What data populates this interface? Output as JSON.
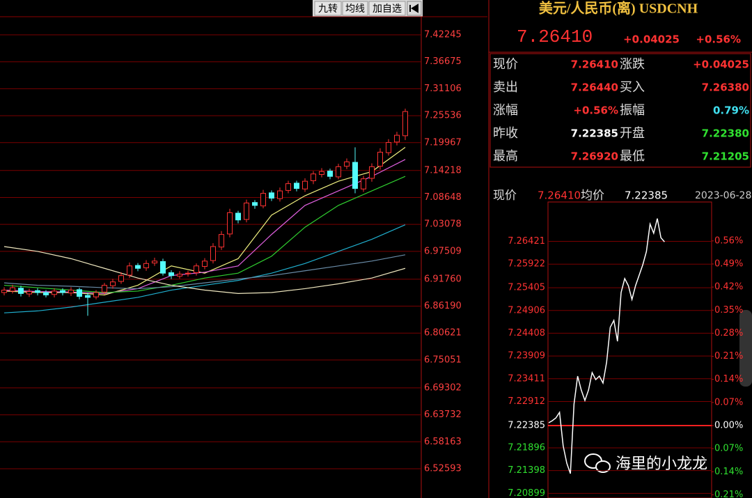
{
  "toolbar": {
    "buttons": [
      "九转",
      "均线",
      "加自选"
    ]
  },
  "kline": {
    "type": "candlestick",
    "ylim": [
      6.52593,
      7.42245
    ],
    "yticks": [
      {
        "value": 7.42245,
        "label": "7.42245"
      },
      {
        "value": 7.36675,
        "label": "7.36675"
      },
      {
        "value": 7.31106,
        "label": "7.31106"
      },
      {
        "value": 7.25536,
        "label": "7.25536"
      },
      {
        "value": 7.19967,
        "label": "7.19967"
      },
      {
        "value": 7.14218,
        "label": "7.14218"
      },
      {
        "value": 7.08648,
        "label": "7.08648"
      },
      {
        "value": 7.03078,
        "label": "7.03078"
      },
      {
        "value": 6.97509,
        "label": "6.97509"
      },
      {
        "value": 6.9176,
        "label": "6.91760"
      },
      {
        "value": 6.8619,
        "label": "6.86190"
      },
      {
        "value": 6.80621,
        "label": "6.80621"
      },
      {
        "value": 6.75051,
        "label": "6.75051"
      },
      {
        "value": 6.69302,
        "label": "6.69302"
      },
      {
        "value": 6.63732,
        "label": "6.63732"
      },
      {
        "value": 6.58163,
        "label": "6.58163"
      },
      {
        "value": 6.52593,
        "label": "6.52593"
      }
    ],
    "up_color": "#ff3232",
    "down_color": "#54fcfc",
    "open": [
      6.89,
      6.893,
      6.899,
      6.887,
      6.894,
      6.89,
      6.886,
      6.894,
      6.889,
      6.896,
      6.884,
      6.881,
      6.891,
      6.904,
      6.913,
      6.926,
      6.946,
      6.941,
      6.951,
      6.954,
      6.931,
      6.924,
      6.929,
      6.931,
      6.944,
      6.956,
      6.984,
      7.011,
      7.054,
      7.041,
      7.076,
      7.069,
      7.096,
      7.084,
      7.101,
      7.116,
      7.104,
      7.121,
      7.134,
      7.141,
      7.129,
      7.151,
      7.159,
      7.104,
      7.126,
      7.151,
      7.179,
      7.201,
      7.214
    ],
    "high": [
      6.901,
      6.906,
      6.904,
      6.898,
      6.899,
      6.895,
      6.899,
      6.899,
      6.901,
      6.9,
      6.89,
      6.895,
      6.91,
      6.918,
      6.932,
      6.952,
      6.951,
      6.957,
      6.962,
      6.96,
      6.936,
      6.934,
      6.935,
      6.95,
      6.961,
      6.992,
      7.017,
      7.063,
      7.059,
      7.082,
      7.081,
      7.102,
      7.101,
      7.107,
      7.121,
      7.121,
      7.126,
      7.141,
      7.147,
      7.146,
      7.156,
      7.167,
      7.19,
      7.131,
      7.157,
      7.188,
      7.207,
      7.222,
      7.27
    ],
    "low": [
      6.884,
      6.888,
      6.882,
      6.881,
      6.884,
      6.88,
      6.88,
      6.884,
      6.883,
      6.876,
      6.842,
      6.876,
      6.886,
      6.898,
      6.908,
      6.92,
      6.934,
      6.935,
      6.945,
      6.925,
      6.918,
      6.919,
      6.923,
      6.925,
      6.938,
      6.95,
      6.978,
      7.004,
      7.033,
      7.035,
      7.063,
      7.064,
      7.079,
      7.078,
      7.095,
      7.099,
      7.098,
      7.114,
      7.128,
      7.124,
      7.124,
      7.145,
      7.095,
      7.098,
      7.119,
      7.144,
      7.173,
      7.194,
      7.205
    ],
    "close": [
      6.895,
      6.9,
      6.888,
      6.892,
      6.89,
      6.885,
      6.893,
      6.89,
      6.895,
      6.882,
      6.88,
      6.89,
      6.905,
      6.912,
      6.925,
      6.945,
      6.94,
      6.95,
      6.955,
      6.93,
      6.925,
      6.928,
      6.93,
      6.945,
      6.955,
      6.985,
      7.01,
      7.055,
      7.04,
      7.075,
      7.07,
      7.095,
      7.085,
      7.1,
      7.115,
      7.105,
      7.12,
      7.135,
      7.14,
      7.13,
      7.15,
      7.16,
      7.105,
      7.125,
      7.15,
      7.18,
      7.2,
      7.215,
      7.264
    ],
    "ma_index": [
      0,
      4,
      8,
      12,
      16,
      20,
      24,
      28,
      32,
      36,
      40,
      44,
      48
    ],
    "series": [
      {
        "color": "#f0f080",
        "values": [
          6.893,
          6.89,
          6.89,
          6.885,
          6.905,
          6.945,
          6.93,
          6.96,
          7.05,
          7.09,
          7.12,
          7.14,
          7.19
        ]
      },
      {
        "color": "#e060e0",
        "values": [
          6.895,
          6.892,
          6.891,
          6.888,
          6.898,
          6.925,
          6.932,
          6.945,
          7.01,
          7.07,
          7.1,
          7.13,
          7.165
        ]
      },
      {
        "color": "#30d030",
        "values": [
          6.905,
          6.9,
          6.895,
          6.89,
          6.893,
          6.905,
          6.92,
          6.93,
          6.965,
          7.025,
          7.07,
          7.1,
          7.13
        ]
      },
      {
        "color": "#20b0d0",
        "values": [
          6.848,
          6.852,
          6.86,
          6.87,
          6.88,
          6.895,
          6.905,
          6.915,
          6.93,
          6.95,
          6.975,
          7.0,
          7.03
        ]
      },
      {
        "color": "#6a8ca8",
        "values": [
          6.91,
          6.905,
          6.903,
          6.9,
          6.898,
          6.902,
          6.91,
          6.918,
          6.925,
          6.935,
          6.945,
          6.955,
          6.968
        ]
      },
      {
        "color": "#f0e8c0",
        "values": [
          6.985,
          6.975,
          6.96,
          6.94,
          6.92,
          6.905,
          6.895,
          6.888,
          6.89,
          6.898,
          6.908,
          6.92,
          6.94
        ]
      }
    ]
  },
  "quote": {
    "title": "美元/人民币(离) USDCNH",
    "price": "7.26410",
    "change": "+0.04025",
    "change_pct": "+0.56%",
    "rows": [
      [
        "现价",
        "7.26410",
        "涨跌",
        "+0.04025"
      ],
      [
        "卖出",
        "7.26440",
        "买入",
        "7.26380"
      ],
      [
        "涨幅",
        "+0.56%",
        "振幅",
        "0.79%"
      ],
      [
        "昨收",
        "7.22385",
        "开盘",
        "7.22380"
      ],
      [
        "最高",
        "7.26920",
        "最低",
        "7.21205"
      ]
    ]
  },
  "intraday": {
    "type": "line",
    "color": "#ffffff",
    "header": [
      "现价",
      "7.26410",
      "均价",
      "7.22385",
      "2023-06-28"
    ],
    "ylim": [
      7.20798,
      7.27283
    ],
    "y2lim": [
      -0.2197,
      0.678
    ],
    "yticks": [
      {
        "value": 7.26421,
        "label": "7.26421"
      },
      {
        "value": 7.25922,
        "label": "7.25922"
      },
      {
        "value": 7.25405,
        "label": "7.25405"
      },
      {
        "value": 7.24906,
        "label": "7.24906"
      },
      {
        "value": 7.24408,
        "label": "7.24408"
      },
      {
        "value": 7.23909,
        "label": "7.23909"
      },
      {
        "value": 7.23411,
        "label": "7.23411"
      },
      {
        "value": 7.22912,
        "label": "7.22912"
      },
      {
        "value": 7.22385,
        "label": "7.22385"
      },
      {
        "value": 7.21896,
        "label": "7.21896"
      },
      {
        "value": 7.21398,
        "label": "7.21398"
      },
      {
        "value": 7.20899,
        "label": "7.20899"
      }
    ],
    "y2ticks": [
      {
        "value": 0.56,
        "label": "0.56%"
      },
      {
        "value": 0.49,
        "label": "0.49%"
      },
      {
        "value": 0.42,
        "label": "0.42%"
      },
      {
        "value": 0.35,
        "label": "0.35%"
      },
      {
        "value": 0.28,
        "label": "0.28%"
      },
      {
        "value": 0.21,
        "label": "0.21%"
      },
      {
        "value": 0.14,
        "label": "0.14%"
      },
      {
        "value": 0.07,
        "label": "0.07%"
      },
      {
        "value": 0,
        "label": "0.00%"
      },
      {
        "value": -0.07,
        "label": "0.07%"
      },
      {
        "value": -0.14,
        "label": "0.14%"
      },
      {
        "value": -0.21,
        "label": "0.21%"
      }
    ],
    "values": [
      7.22446,
      7.22492,
      7.22553,
      7.22675,
      7.21942,
      7.21561,
      7.21332,
      7.22858,
      7.23468,
      7.23163,
      7.22934,
      7.23163,
      7.23545,
      7.23392,
      7.23468,
      7.23316,
      7.23774,
      7.24537,
      7.24689,
      7.24231,
      7.253,
      7.25605,
      7.25452,
      7.25147,
      7.25452,
      7.25681,
      7.2591,
      7.262,
      7.268,
      7.266,
      7.2692,
      7.265,
      7.2641
    ]
  },
  "watermark": "海里的小龙龙"
}
